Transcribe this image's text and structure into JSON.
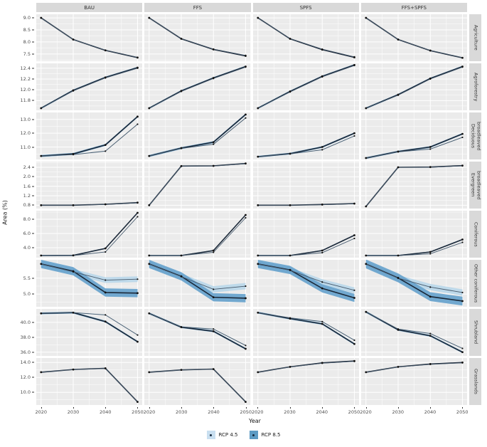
{
  "chart_data": {
    "type": "line",
    "xlabel": "Year",
    "ylabel": "Area (%)",
    "x": [
      2020,
      2030,
      2040,
      2050
    ],
    "x_ticks": [
      2020,
      2030,
      2040,
      2050
    ],
    "x_minor": [
      2025,
      2035,
      2045
    ],
    "xlim": [
      2018.5,
      2051.5
    ],
    "legend_position": "bottom",
    "series_names": [
      "RCP 4.5",
      "RCP 8.5"
    ],
    "columns": [
      "BAU",
      "FFS",
      "SPFS",
      "FFS+SPFS"
    ],
    "rows": [
      {
        "label": "Agriculture",
        "ylim": [
          7.2,
          9.15
        ],
        "yticks": [
          7.5,
          8.0,
          8.5,
          9.0
        ],
        "ytick_labels": [
          "7.5",
          "8.0",
          "8.5",
          "9.0"
        ]
      },
      {
        "label": "Agroforestry",
        "ylim": [
          11.62,
          12.49
        ],
        "yticks": [
          11.8,
          12.0,
          12.2,
          12.4
        ],
        "ytick_labels": [
          "11.8",
          "12.0",
          "12.2",
          "12.4"
        ]
      },
      {
        "label": "Deciduous broadleaved",
        "ylim": [
          10.1,
          13.5
        ],
        "yticks": [
          11.0,
          12.0,
          13.0
        ],
        "ytick_labels": [
          "11.0",
          "12.0",
          "13.0"
        ]
      },
      {
        "label": "Evergreen broadleaved",
        "ylim": [
          0.66,
          2.64
        ],
        "yticks": [
          0.8,
          1.2,
          1.6,
          2.0,
          2.4
        ],
        "ytick_labels": [
          "0.8",
          "1.2",
          "1.6",
          "2.0",
          "2.4"
        ]
      },
      {
        "label": "Coniferous",
        "ylim": [
          2.6,
          9.2
        ],
        "yticks": [
          4.0,
          6.0,
          8.0
        ],
        "ytick_labels": [
          "4.0",
          "6.0",
          "8.0"
        ]
      },
      {
        "label": "Other coniferous",
        "ylim": [
          4.6,
          6.08
        ],
        "yticks": [
          5.0,
          5.5
        ],
        "ytick_labels": [
          "5.0",
          "5.5"
        ]
      },
      {
        "label": "Shrubland",
        "ylim": [
          35.5,
          41.8
        ],
        "yticks": [
          36.0,
          38.0,
          40.0
        ],
        "ytick_labels": [
          "36.0",
          "38.0",
          "40.0"
        ]
      },
      {
        "label": "Grasslands",
        "ylim": [
          8.3,
          14.6
        ],
        "yticks": [
          10.0,
          12.0,
          14.0
        ],
        "ytick_labels": [
          "10.0",
          "12.0",
          "14.0"
        ]
      }
    ],
    "facets": [
      [
        {
          "rcp45": [
            9.0,
            8.1,
            7.66,
            7.36
          ],
          "rcp85": [
            9.0,
            8.1,
            7.65,
            7.35
          ],
          "band45": 0,
          "band85": 0
        },
        {
          "rcp45": [
            9.0,
            8.14,
            7.7,
            7.44
          ],
          "rcp85": [
            9.0,
            8.13,
            7.69,
            7.42
          ],
          "band45": 0,
          "band85": 0
        },
        {
          "rcp45": [
            9.0,
            8.14,
            7.7,
            7.38
          ],
          "rcp85": [
            9.0,
            8.13,
            7.68,
            7.36
          ],
          "band45": 0,
          "band85": 0
        },
        {
          "rcp45": [
            9.0,
            8.1,
            7.65,
            7.35
          ],
          "rcp85": [
            9.0,
            8.1,
            7.64,
            7.34
          ],
          "band45": 0,
          "band85": 0
        }
      ],
      [
        {
          "rcp45": [
            11.66,
            11.98,
            12.22,
            12.4
          ],
          "rcp85": [
            11.66,
            11.99,
            12.23,
            12.41
          ],
          "band45": 0,
          "band85": 0.015
        },
        {
          "rcp45": [
            11.66,
            11.97,
            12.21,
            12.42
          ],
          "rcp85": [
            11.66,
            11.98,
            12.22,
            12.43
          ],
          "band45": 0,
          "band85": 0.015
        },
        {
          "rcp45": [
            11.66,
            11.96,
            12.24,
            12.45
          ],
          "rcp85": [
            11.66,
            11.97,
            12.25,
            12.46
          ],
          "band45": 0,
          "band85": 0.015
        },
        {
          "rcp45": [
            11.66,
            11.9,
            12.2,
            12.42
          ],
          "rcp85": [
            11.66,
            11.91,
            12.21,
            12.43
          ],
          "band45": 0,
          "band85": 0.015
        }
      ],
      [
        {
          "rcp45": [
            10.35,
            10.45,
            10.7,
            12.65
          ],
          "rcp85": [
            10.35,
            10.5,
            11.15,
            13.2
          ],
          "band45": 0.03,
          "band85": 0.07
        },
        {
          "rcp45": [
            10.35,
            10.9,
            11.2,
            13.1
          ],
          "rcp85": [
            10.35,
            10.92,
            11.35,
            13.35
          ],
          "band45": 0.03,
          "band85": 0.07
        },
        {
          "rcp45": [
            10.3,
            10.5,
            10.8,
            11.8
          ],
          "rcp85": [
            10.3,
            10.52,
            11.0,
            12.0
          ],
          "band45": 0.03,
          "band85": 0.06
        },
        {
          "rcp45": [
            10.2,
            10.65,
            10.85,
            11.7
          ],
          "rcp85": [
            10.2,
            10.67,
            11.0,
            11.95
          ],
          "band45": 0.03,
          "band85": 0.06
        }
      ],
      [
        {
          "rcp45": [
            0.8,
            0.8,
            0.83,
            0.9
          ],
          "rcp85": [
            0.8,
            0.8,
            0.84,
            0.91
          ],
          "band45": 0,
          "band85": 0
        },
        {
          "rcp45": [
            0.8,
            2.45,
            2.45,
            2.55
          ],
          "rcp85": [
            0.8,
            2.45,
            2.46,
            2.56
          ],
          "band45": 0,
          "band85": 0
        },
        {
          "rcp45": [
            0.8,
            0.8,
            0.82,
            0.86
          ],
          "rcp85": [
            0.8,
            0.8,
            0.83,
            0.87
          ],
          "band45": 0,
          "band85": 0
        },
        {
          "rcp45": [
            0.75,
            2.4,
            2.4,
            2.46
          ],
          "rcp85": [
            0.75,
            2.4,
            2.41,
            2.47
          ],
          "band45": 0,
          "band85": 0
        }
      ],
      [
        {
          "rcp45": [
            2.9,
            2.9,
            3.4,
            8.35
          ],
          "rcp85": [
            2.9,
            2.92,
            3.9,
            8.9
          ],
          "band45": 0.04,
          "band85": 0.08
        },
        {
          "rcp45": [
            2.9,
            2.9,
            3.35,
            8.2
          ],
          "rcp85": [
            2.9,
            2.9,
            3.6,
            8.6
          ],
          "band45": 0.04,
          "band85": 0.08
        },
        {
          "rcp45": [
            2.9,
            2.9,
            3.3,
            5.3
          ],
          "rcp85": [
            2.9,
            2.9,
            3.6,
            5.75
          ],
          "band45": 0.04,
          "band85": 0.08
        },
        {
          "rcp45": [
            2.9,
            2.9,
            3.15,
            4.75
          ],
          "rcp85": [
            2.9,
            2.9,
            3.4,
            5.15
          ],
          "band45": 0.04,
          "band85": 0.08
        }
      ],
      [
        {
          "rcp45": [
            5.95,
            5.7,
            5.44,
            5.47
          ],
          "rcp85": [
            5.95,
            5.72,
            5.05,
            5.03
          ],
          "band45": 0.09,
          "band85": 0.13
        },
        {
          "rcp45": [
            5.95,
            5.55,
            5.15,
            5.25
          ],
          "rcp85": [
            5.95,
            5.56,
            4.9,
            4.87
          ],
          "band45": 0.1,
          "band85": 0.13
        },
        {
          "rcp45": [
            5.95,
            5.75,
            5.38,
            5.12
          ],
          "rcp85": [
            5.95,
            5.76,
            5.18,
            4.88
          ],
          "band45": 0.09,
          "band85": 0.13
        },
        {
          "rcp45": [
            5.95,
            5.5,
            5.22,
            5.05
          ],
          "rcp85": [
            5.95,
            5.51,
            4.92,
            4.78
          ],
          "band45": 0.1,
          "band85": 0.14
        }
      ],
      [
        {
          "rcp45": [
            41.2,
            41.3,
            41.0,
            38.3
          ],
          "rcp85": [
            41.2,
            41.3,
            40.1,
            37.4
          ],
          "band45": 0.06,
          "band85": 0.12
        },
        {
          "rcp45": [
            41.2,
            39.4,
            39.1,
            36.9
          ],
          "rcp85": [
            41.2,
            39.35,
            38.8,
            36.45
          ],
          "band45": 0.06,
          "band85": 0.12
        },
        {
          "rcp45": [
            41.3,
            40.6,
            40.1,
            37.6
          ],
          "rcp85": [
            41.3,
            40.5,
            39.8,
            37.1
          ],
          "band45": 0.06,
          "band85": 0.12
        },
        {
          "rcp45": [
            41.4,
            39.1,
            38.5,
            36.5
          ],
          "rcp85": [
            41.4,
            39.0,
            38.2,
            36.0
          ],
          "band45": 0.06,
          "band85": 0.12
        }
      ],
      [
        {
          "rcp45": [
            12.7,
            13.05,
            13.2,
            8.7
          ],
          "rcp85": [
            12.7,
            13.06,
            13.22,
            8.72
          ],
          "band45": 0,
          "band85": 0.04
        },
        {
          "rcp45": [
            12.7,
            13.0,
            13.1,
            8.7
          ],
          "rcp85": [
            12.7,
            13.01,
            13.12,
            8.72
          ],
          "band45": 0,
          "band85": 0.04
        },
        {
          "rcp45": [
            12.7,
            13.4,
            13.9,
            14.15
          ],
          "rcp85": [
            12.7,
            13.42,
            13.95,
            14.2
          ],
          "band45": 0,
          "band85": 0.03
        },
        {
          "rcp45": [
            12.7,
            13.4,
            13.75,
            13.95
          ],
          "rcp85": [
            12.7,
            13.42,
            13.8,
            14.0
          ],
          "band45": 0,
          "band85": 0.03
        }
      ]
    ],
    "colors": {
      "panel_bg": "#ebebeb",
      "grid": "#ffffff",
      "strip_bg": "#d9d9d9",
      "strip_text": "#333333",
      "line45": "#46586a",
      "line85": "#1b2838",
      "ribbon45": "#b9d7ea",
      "ribbon85": "#6aa4cd",
      "point": "#131313",
      "legend_swatch45": "#c9dff0",
      "legend_swatch85": "#5d9bc4"
    }
  },
  "legend": {
    "rcp45_label": "RCP 4.5",
    "rcp85_label": "RCP 8.5"
  }
}
